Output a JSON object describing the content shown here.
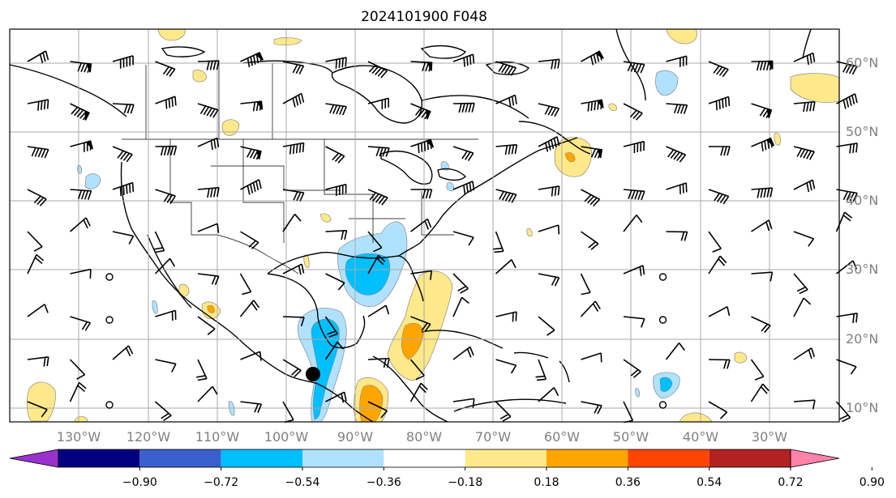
{
  "title": "2024101900 F048",
  "latitude_labels": [
    "60°N",
    "50°N",
    "40°N",
    "30°N",
    "20°N",
    "10°N"
  ],
  "longitude_labels": [
    "130°W",
    "120°W",
    "110°W",
    "100°W",
    "90°W",
    "80°W",
    "70°W",
    "60°W",
    "50°W",
    "40°W",
    "30°W"
  ],
  "colorbar": {
    "ticks": [
      "−0.90",
      "−0.72",
      "−0.54",
      "−0.36",
      "−0.18",
      "0.18",
      "0.36",
      "0.54",
      "0.72",
      "0.90"
    ],
    "colors": [
      "#9932cc",
      "#000080",
      "#3a5fcd",
      "#00bfff",
      "#b0e2ff",
      "#ffffff",
      "#ffe98a",
      "#ffa500",
      "#ff4500",
      "#b22222",
      "#ff82ab"
    ]
  },
  "colors": {
    "positive_light": "#ffe98a",
    "positive_mid": "#ffa500",
    "negative_light": "#b0e2ff",
    "negative_mid": "#00bfff",
    "grid": "#aaaaaa",
    "coast": "#000000",
    "marker": "#000000"
  },
  "marker": {
    "name": "black-dot-marker",
    "lat": 15.5,
    "lon": -96.0
  }
}
